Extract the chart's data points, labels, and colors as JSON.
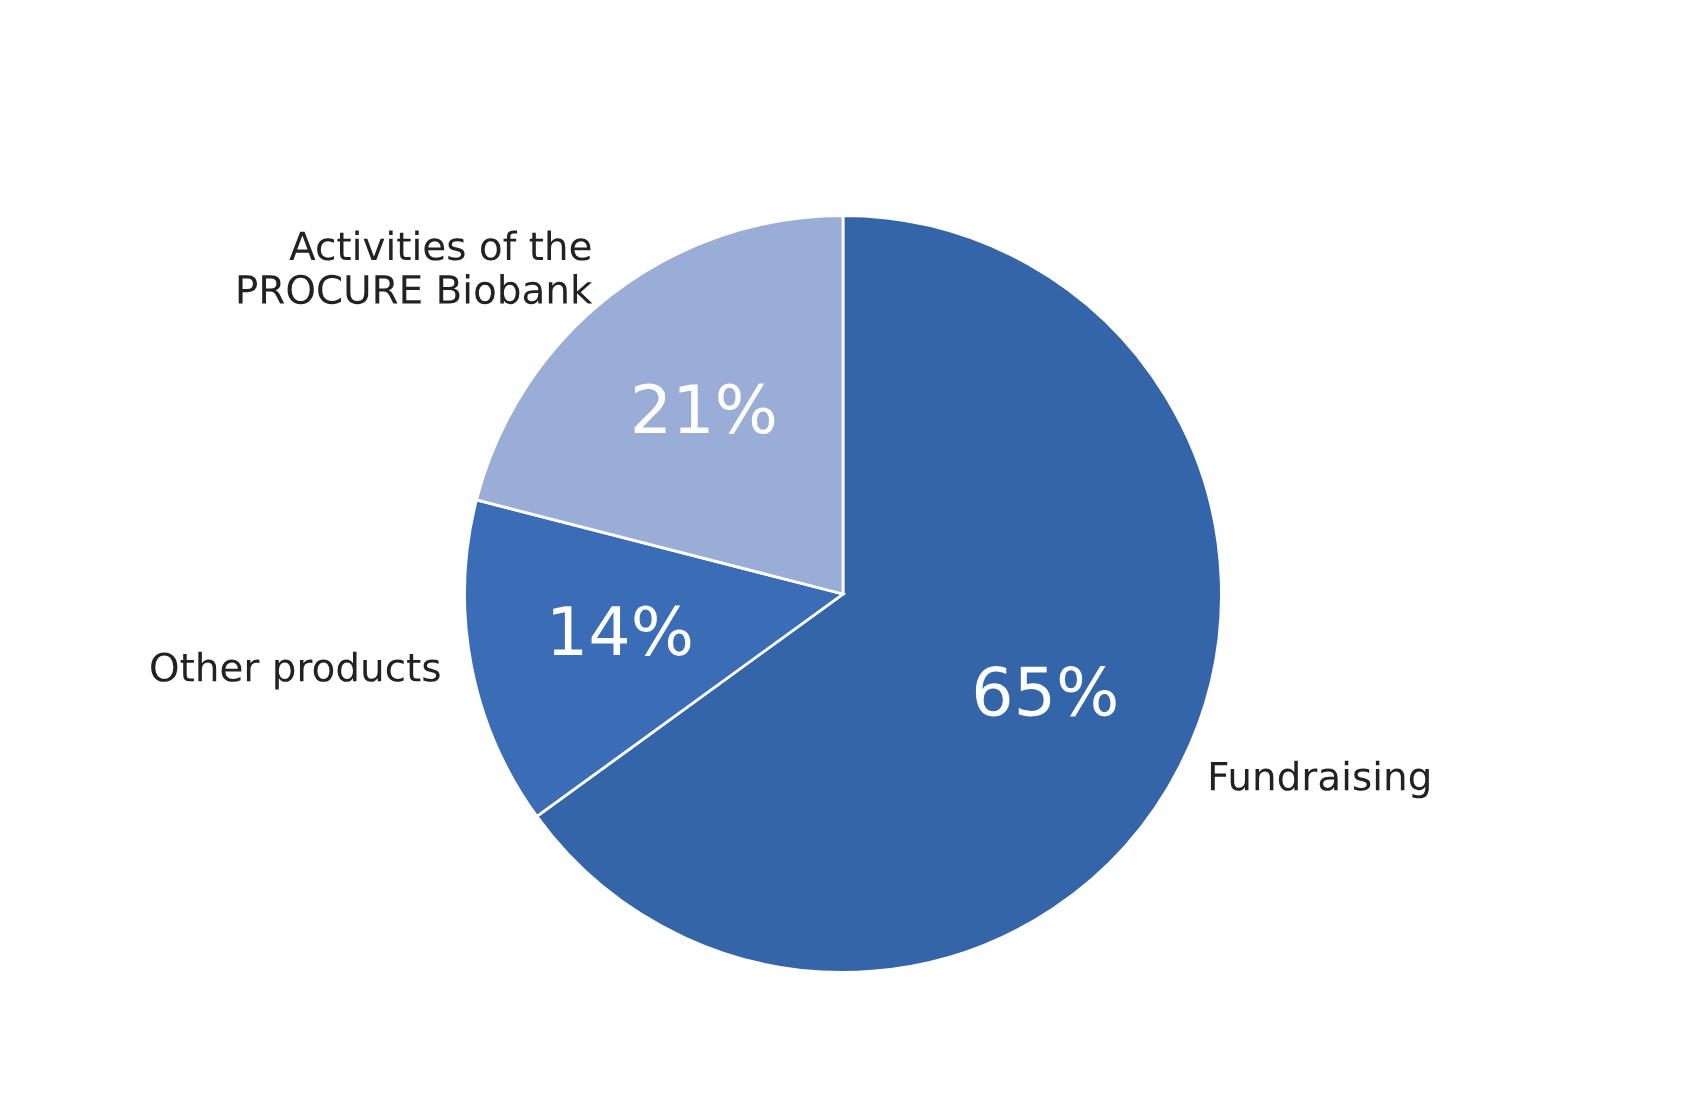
{
  "chart_data": {
    "type": "pie",
    "categories": [
      "Fundraising",
      "Other products",
      "Activities of the\nPROCURE Biobank"
    ],
    "values": [
      65,
      14,
      21
    ],
    "colors": [
      "#3465a8",
      "#3a6db5",
      "#9aadd6"
    ],
    "value_labels": [
      "65%",
      "14%",
      "21%"
    ],
    "legend": false
  }
}
